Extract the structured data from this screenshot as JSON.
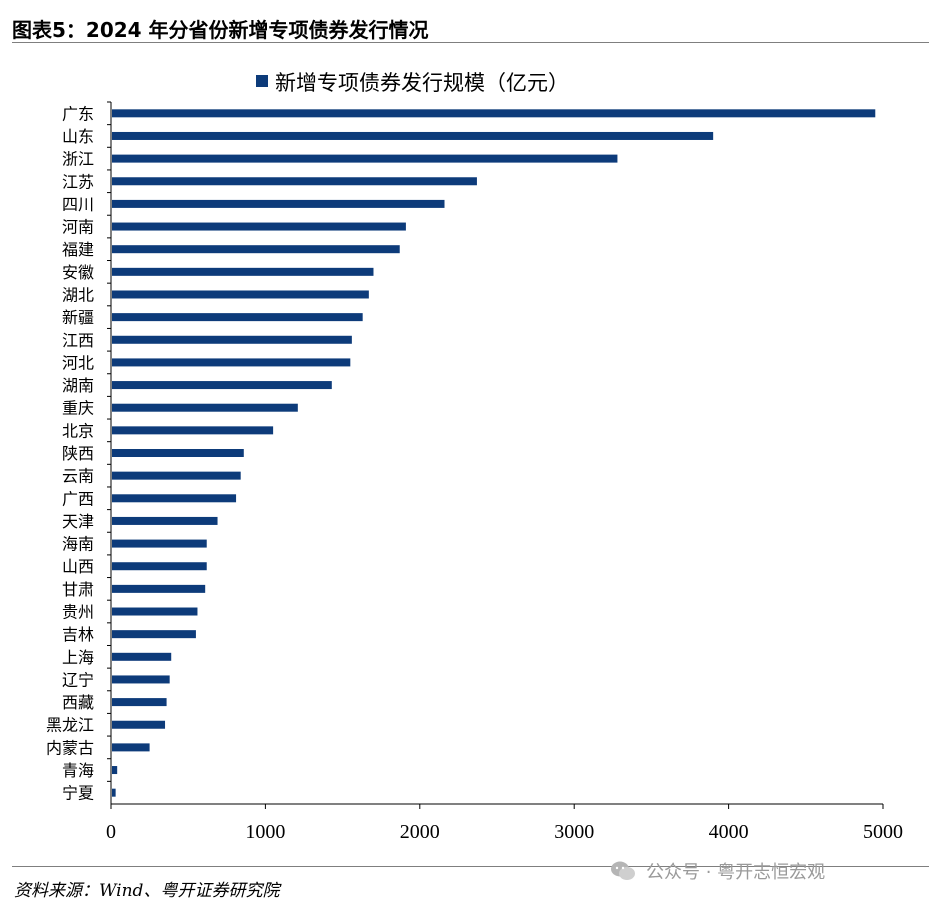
{
  "page_title": "图表5：2024 年分省份新增专项债券发行情况",
  "source_text": "资料来源：Wind、粤开证券研究院",
  "watermark_text": "公众号 · 粤开志恒宏观",
  "chart_data": {
    "type": "bar",
    "orientation": "horizontal",
    "legend_position": "top-center",
    "grid": false,
    "bar_color": "#0d3b7a",
    "categories": [
      "广东",
      "山东",
      "浙江",
      "江苏",
      "四川",
      "河南",
      "福建",
      "安徽",
      "湖北",
      "新疆",
      "江西",
      "河北",
      "湖南",
      "重庆",
      "北京",
      "陕西",
      "云南",
      "广西",
      "天津",
      "海南",
      "山西",
      "甘肃",
      "贵州",
      "吉林",
      "上海",
      "辽宁",
      "西藏",
      "黑龙江",
      "内蒙古",
      "青海",
      "宁夏"
    ],
    "series": [
      {
        "name": "新增专项债券发行规模（亿元）",
        "values": [
          4950,
          3900,
          3280,
          2370,
          2160,
          1910,
          1870,
          1700,
          1670,
          1630,
          1560,
          1550,
          1430,
          1210,
          1050,
          860,
          840,
          810,
          690,
          620,
          620,
          610,
          560,
          550,
          390,
          380,
          360,
          350,
          250,
          40,
          30
        ]
      }
    ],
    "xlim": [
      0,
      5000
    ],
    "xticks": [
      0,
      1000,
      2000,
      3000,
      4000,
      5000
    ],
    "xticklabels": [
      "0",
      "1000",
      "2000",
      "3000",
      "4000",
      "5000"
    ]
  }
}
